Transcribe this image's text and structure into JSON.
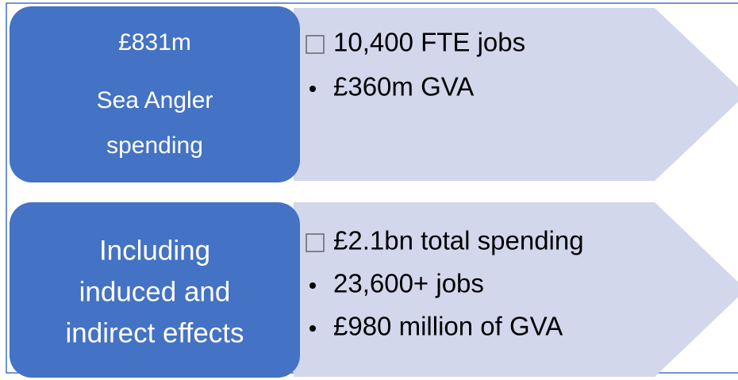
{
  "rows": [
    {
      "box": [
        "£831m",
        "Sea Angler",
        "spending"
      ],
      "bullets": [
        "10,400 FTE jobs",
        "£360m GVA"
      ]
    },
    {
      "box": [
        "Including",
        "induced and",
        "indirect effects"
      ],
      "bullets": [
        "£2.1bn total spending",
        "23,600+ jobs",
        "£980 million of GVA"
      ]
    }
  ]
}
